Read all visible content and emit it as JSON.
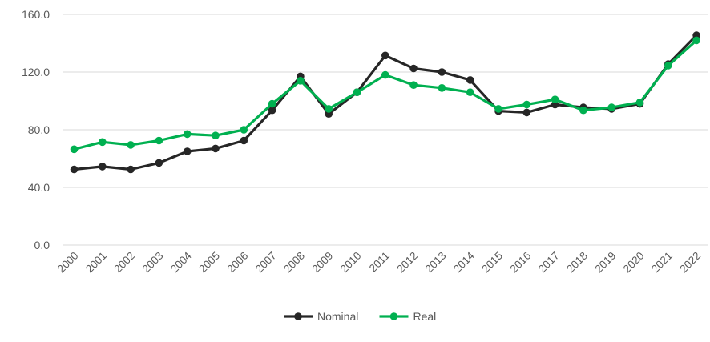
{
  "chart_data": {
    "type": "line",
    "title": "",
    "xlabel": "",
    "ylabel": "",
    "x": [
      "2000",
      "2001",
      "2002",
      "2003",
      "2004",
      "2005",
      "2006",
      "2007",
      "2008",
      "2009",
      "2010",
      "2011",
      "2012",
      "2013",
      "2014",
      "2015",
      "2016",
      "2017",
      "2018",
      "2019",
      "2020",
      "2021",
      "2022"
    ],
    "ylim": [
      0,
      160
    ],
    "yticks": [
      "0.0",
      "40.0",
      "80.0",
      "120.0",
      "160.0"
    ],
    "grid": "horizontal",
    "legend_position": "bottom",
    "series": [
      {
        "name": "Nominal",
        "color": "#262626",
        "values": [
          52.5,
          54.5,
          52.5,
          57,
          65,
          67,
          72.5,
          93.5,
          117,
          91,
          106,
          131.5,
          122.5,
          120,
          114.5,
          93,
          92,
          97.5,
          95.5,
          94.5,
          98,
          125.5,
          145.5
        ]
      },
      {
        "name": "Real",
        "color": "#00b050",
        "values": [
          66.5,
          71.5,
          69.5,
          72.5,
          77,
          76,
          80,
          98,
          114,
          94.5,
          106,
          118,
          111,
          109,
          106,
          94.5,
          97.5,
          101,
          93.5,
          95.5,
          99,
          124.5,
          142
        ]
      }
    ]
  }
}
